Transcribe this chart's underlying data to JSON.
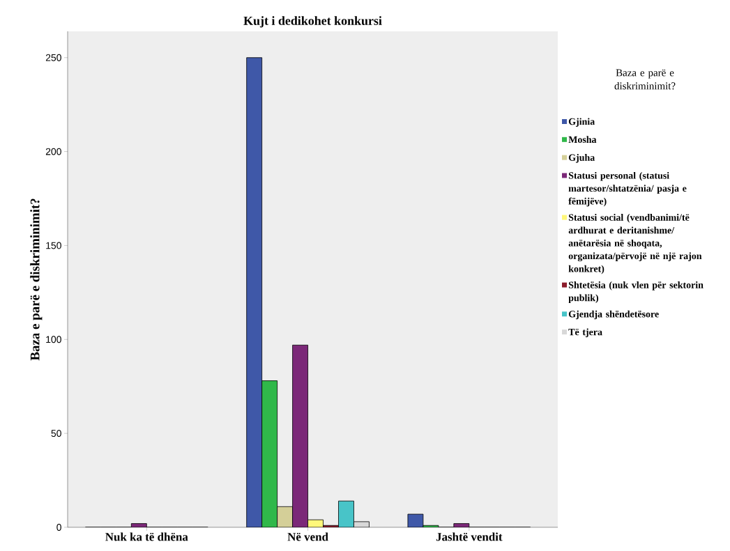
{
  "chart_data": {
    "type": "bar",
    "title": "Kujt i dedikohet konkursi",
    "ylabel": "Baza e parë e diskriminimit?",
    "legend_title": "Baza e parë e diskriminimit?",
    "categories": [
      "Nuk ka të dhëna",
      "Në vend",
      "Jashtë vendit"
    ],
    "series": [
      {
        "name": "Gjinia",
        "color": "#3f58a8",
        "values": [
          0,
          250,
          7
        ]
      },
      {
        "name": "Mosha",
        "color": "#30b84a",
        "values": [
          0,
          78,
          1
        ]
      },
      {
        "name": "Gjuha",
        "color": "#d4cf98",
        "values": [
          0,
          11,
          0
        ]
      },
      {
        "name": "Statusi personal (statusi martesor/shtatzënia/ pasja e fëmijëve)",
        "color": "#7b2878",
        "values": [
          2,
          97,
          2
        ]
      },
      {
        "name": "Statusi social (vendbanimi/të ardhurat e deritanishme/ anëtarësia në shoqata, organizata/përvojë në një rajon konkret)",
        "color": "#fff77a",
        "values": [
          0,
          4,
          0
        ]
      },
      {
        "name": "Shtetësia (nuk vlen për sektorin publik)",
        "color": "#8c1c2c",
        "values": [
          0,
          1,
          0
        ]
      },
      {
        "name": "Gjendja shëndetësore",
        "color": "#48c4c8",
        "values": [
          0,
          14,
          0
        ]
      },
      {
        "name": "Të tjera",
        "color": "#d8d8d8",
        "values": [
          0,
          3,
          0
        ]
      }
    ],
    "ylim": [
      0,
      264
    ],
    "yticks": [
      0,
      50,
      100,
      150,
      200,
      250
    ],
    "grid": false,
    "legend": "right"
  }
}
